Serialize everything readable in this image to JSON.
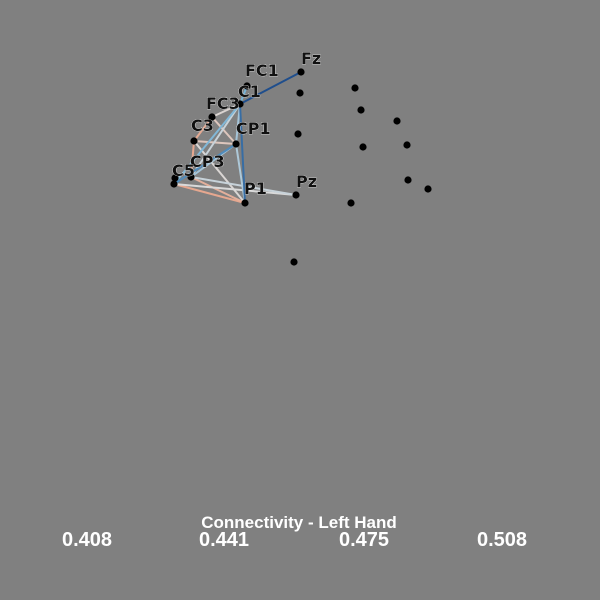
{
  "title": "Connectivity - Left Hand",
  "colorbar": {
    "ticks": [
      "0.408",
      "0.441",
      "0.475",
      "0.508"
    ]
  },
  "colors": {
    "background": "#808080",
    "node": "#000000",
    "low": "#e5a58c",
    "mid": "#d9d9d9",
    "high": "#1f4e8c"
  },
  "electrodes": [
    {
      "id": "Fz",
      "label": "Fz"
    },
    {
      "id": "FC1",
      "label": "FC1"
    },
    {
      "id": "C1",
      "label": "C1"
    },
    {
      "id": "FC3",
      "label": "FC3"
    },
    {
      "id": "C3",
      "label": "C3"
    },
    {
      "id": "CP1",
      "label": "CP1"
    },
    {
      "id": "CP3",
      "label": "CP3"
    },
    {
      "id": "C5",
      "label": "C5"
    },
    {
      "id": "P1",
      "label": "P1"
    },
    {
      "id": "Pz",
      "label": "Pz"
    },
    {
      "id": "u1",
      "label": ""
    },
    {
      "id": "u2",
      "label": ""
    },
    {
      "id": "u3",
      "label": ""
    },
    {
      "id": "u4",
      "label": ""
    },
    {
      "id": "u5",
      "label": ""
    },
    {
      "id": "u6",
      "label": ""
    },
    {
      "id": "u7",
      "label": ""
    },
    {
      "id": "u8",
      "label": ""
    },
    {
      "id": "u9",
      "label": ""
    },
    {
      "id": "u10",
      "label": ""
    },
    {
      "id": "u11",
      "label": ""
    },
    {
      "id": "u12",
      "label": ""
    }
  ],
  "connections": [
    {
      "a": "Fz",
      "b": "C1",
      "value": 0.508
    },
    {
      "a": "FC1",
      "b": "C1",
      "value": 0.48
    },
    {
      "a": "C1",
      "b": "P1",
      "value": 0.5
    },
    {
      "a": "C1",
      "b": "CP1",
      "value": 0.47
    },
    {
      "a": "C1",
      "b": "C5",
      "value": 0.478
    },
    {
      "a": "C1",
      "b": "CP3",
      "value": 0.462
    },
    {
      "a": "C1",
      "b": "FC3",
      "value": 0.452
    },
    {
      "a": "FC3",
      "b": "C3",
      "value": 0.412
    },
    {
      "a": "FC3",
      "b": "CP1",
      "value": 0.44
    },
    {
      "a": "C3",
      "b": "CP1",
      "value": 0.44
    },
    {
      "a": "C3",
      "b": "CP3",
      "value": 0.41
    },
    {
      "a": "C3",
      "b": "P1",
      "value": 0.455
    },
    {
      "a": "CP1",
      "b": "C5",
      "value": 0.492
    },
    {
      "a": "CP1",
      "b": "CP3",
      "value": 0.47
    },
    {
      "a": "CP1",
      "b": "P1",
      "value": 0.468
    },
    {
      "a": "CP3",
      "b": "P1",
      "value": 0.418
    },
    {
      "a": "C5",
      "b": "P1",
      "value": 0.41
    },
    {
      "a": "CP3",
      "b": "Pz",
      "value": 0.462
    },
    {
      "a": "C5",
      "b": "Pz",
      "value": 0.458
    }
  ]
}
